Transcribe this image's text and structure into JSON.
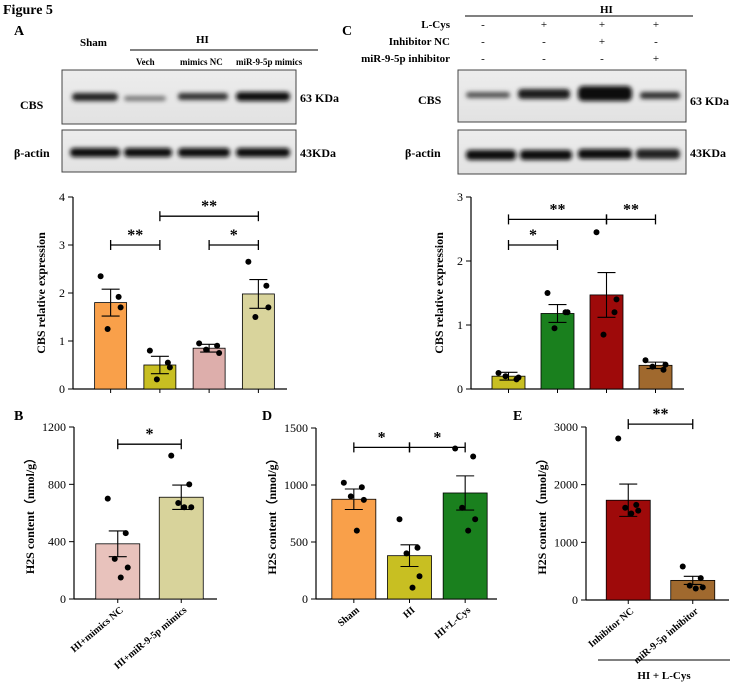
{
  "figure_title": "Figure 5",
  "colors": {
    "orange": "#F9A04A",
    "olive": "#C8BF22",
    "pink": "#DDAEAB",
    "khaki": "#D9D49C",
    "green": "#1A801E",
    "darkred": "#9E0A0A",
    "brown": "#A0692E",
    "lightpink": "#E8C2BC",
    "lightkhaki": "#D8D39B"
  },
  "panelA": {
    "letter": "A",
    "lane_labels": {
      "sham": "Sham",
      "hi": "HI",
      "vech": "Vech",
      "mimics_nc": "mimics NC",
      "mir_mimics": "miR-9-5p mimics"
    },
    "blot_cbs_label": "CBS",
    "blot_cbs_kda": "63 KDa",
    "blot_actin_label": "β-actin",
    "blot_actin_kda": "43KDa"
  },
  "panelC": {
    "letter": "C",
    "hi_label": "HI",
    "rows": [
      {
        "label": "L-Cys",
        "signs": [
          "-",
          "+",
          "+",
          "+"
        ]
      },
      {
        "label": "Inhibitor NC",
        "signs": [
          "-",
          "-",
          "+",
          "-"
        ]
      },
      {
        "label": "miR-9-5p inhibitor",
        "signs": [
          "-",
          "-",
          "-",
          "+"
        ]
      }
    ],
    "blot_cbs_label": "CBS",
    "blot_cbs_kda": "63 KDa",
    "blot_actin_label": "β-actin",
    "blot_actin_kda": "43KDa"
  },
  "panelB": {
    "letter": "B"
  },
  "panelD": {
    "letter": "D"
  },
  "panelE": {
    "letter": "E",
    "group_label": "HI + L-Cys"
  },
  "chart_data": [
    {
      "id": "A-bar",
      "type": "bar",
      "ylabel": "CBS relative expression",
      "ylim": [
        0,
        4
      ],
      "yticks": [
        0,
        1,
        2,
        3,
        4
      ],
      "categories": [
        "",
        "",
        "",
        ""
      ],
      "values": [
        1.8,
        0.5,
        0.85,
        1.98
      ],
      "errors": [
        0.28,
        0.18,
        0.08,
        0.3
      ],
      "colors": [
        "#F9A04A",
        "#C8BF22",
        "#DDAEAB",
        "#D9D49C"
      ],
      "points": [
        [
          2.35,
          1.92,
          1.25,
          1.7
        ],
        [
          0.8,
          0.55,
          0.2,
          0.45
        ],
        [
          0.95,
          0.9,
          0.82,
          0.75
        ],
        [
          2.65,
          2.15,
          1.5,
          1.7
        ]
      ],
      "significance": [
        {
          "from": 0,
          "to": 1,
          "label": "**",
          "y": 3.0
        },
        {
          "from": 1,
          "to": 3,
          "label": "**",
          "y": 3.6
        },
        {
          "from": 2,
          "to": 3,
          "label": "*",
          "y": 3.0
        }
      ]
    },
    {
      "id": "C-bar",
      "type": "bar",
      "ylabel": "CBS relative expression",
      "ylim": [
        0,
        3
      ],
      "yticks": [
        0,
        1,
        2,
        3
      ],
      "categories": [
        "",
        "",
        "",
        ""
      ],
      "values": [
        0.2,
        1.18,
        1.47,
        0.37
      ],
      "errors": [
        0.06,
        0.14,
        0.35,
        0.05
      ],
      "colors": [
        "#C8BF22",
        "#1A801E",
        "#9E0A0A",
        "#A0692E"
      ],
      "points": [
        [
          0.25,
          0.15,
          0.2,
          0.18
        ],
        [
          1.5,
          1.2,
          0.95,
          1.2
        ],
        [
          2.45,
          1.2,
          0.85,
          1.4
        ],
        [
          0.45,
          0.3,
          0.35,
          0.38
        ]
      ],
      "significance": [
        {
          "from": 0,
          "to": 1,
          "label": "*",
          "y": 2.25
        },
        {
          "from": 0,
          "to": 2,
          "label": "**",
          "y": 2.65
        },
        {
          "from": 2,
          "to": 3,
          "label": "**",
          "y": 2.65
        }
      ]
    },
    {
      "id": "B-bar",
      "type": "bar",
      "ylabel": "H2S content（nmol/g）",
      "ylim": [
        0,
        1200
      ],
      "yticks": [
        0,
        400,
        800,
        1200
      ],
      "categories": [
        "HI+mimics NC",
        "HI+miR-9-5p mimics"
      ],
      "values": [
        385,
        710
      ],
      "errors": [
        90,
        85
      ],
      "colors": [
        "#E8C2BC",
        "#D8D39B"
      ],
      "points": [
        [
          700,
          460,
          280,
          220,
          150
        ],
        [
          1000,
          800,
          670,
          640,
          640
        ]
      ],
      "significance": [
        {
          "from": 0,
          "to": 1,
          "label": "*",
          "y": 1080
        }
      ]
    },
    {
      "id": "D-bar",
      "type": "bar",
      "ylabel": "H2S content（nmol/g）",
      "ylim": [
        0,
        1500
      ],
      "yticks": [
        0,
        500,
        1000,
        1500
      ],
      "categories": [
        "Sham",
        "HI",
        "HI+L-Cys"
      ],
      "values": [
        875,
        380,
        930
      ],
      "errors": [
        90,
        95,
        150
      ],
      "colors": [
        "#F9A04A",
        "#C8BF22",
        "#1A801E"
      ],
      "points": [
        [
          1020,
          980,
          900,
          870,
          600
        ],
        [
          700,
          450,
          400,
          200,
          100
        ],
        [
          1320,
          1250,
          800,
          700,
          600
        ]
      ],
      "significance": [
        {
          "from": 0,
          "to": 1,
          "label": "*",
          "y": 1330
        },
        {
          "from": 1,
          "to": 2,
          "label": "*",
          "y": 1330
        }
      ]
    },
    {
      "id": "E-bar",
      "type": "bar",
      "ylabel": "H2S content（nmol/g）",
      "ylim": [
        0,
        3000
      ],
      "yticks": [
        0,
        1000,
        2000,
        3000
      ],
      "categories": [
        "Inhibitor NC",
        "miR-9-5p inhibitor"
      ],
      "values": [
        1730,
        340
      ],
      "errors": [
        280,
        70
      ],
      "colors": [
        "#9E0A0A",
        "#A0692E"
      ],
      "points": [
        [
          2800,
          1650,
          1600,
          1550,
          1500
        ],
        [
          580,
          380,
          250,
          220,
          200
        ]
      ],
      "significance": [
        {
          "from": 0,
          "to": 1,
          "label": "**",
          "y": 3050
        }
      ]
    }
  ]
}
